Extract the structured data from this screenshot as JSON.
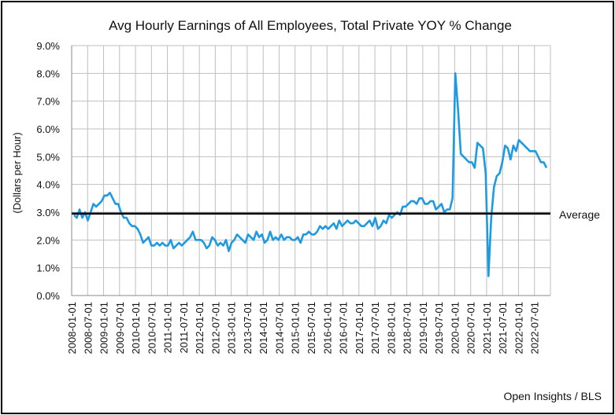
{
  "chart_data": {
    "type": "line",
    "title": "Avg Hourly Earnings of All Employees, Total Private YOY % Change",
    "xlabel": "",
    "ylabel": "(Dollars per Hour)",
    "ylim": [
      0,
      9
    ],
    "y_tick_labels": [
      "0.0%",
      "1.0%",
      "2.0%",
      "3.0%",
      "4.0%",
      "5.0%",
      "6.0%",
      "7.0%",
      "8.0%",
      "9.0%"
    ],
    "x_tick_labels": [
      "2008-01-01",
      "2008-07-01",
      "2009-01-01",
      "2009-07-01",
      "2010-01-01",
      "2010-07-01",
      "2011-01-01",
      "2011-07-01",
      "2012-01-01",
      "2012-07-01",
      "2013-01-01",
      "2013-07-01",
      "2014-01-01",
      "2014-07-01",
      "2015-01-01",
      "2015-07-01",
      "2016-01-01",
      "2016-07-01",
      "2017-01-01",
      "2017-07-01",
      "2018-01-01",
      "2018-07-01",
      "2019-01-01",
      "2019-07-01",
      "2020-01-01",
      "2020-07-01",
      "2021-01-01",
      "2021-07-01",
      "2022-01-01",
      "2022-07-01"
    ],
    "grid": true,
    "reference_line": {
      "label": "Average",
      "value": 2.95
    },
    "series": [
      {
        "color": "#1e9ae0",
        "x_start": "2008-01",
        "frequency": "monthly",
        "values": [
          2.9,
          2.8,
          3.1,
          2.8,
          3.0,
          2.7,
          3.0,
          3.3,
          3.2,
          3.3,
          3.4,
          3.6,
          3.6,
          3.7,
          3.5,
          3.3,
          3.3,
          3.0,
          2.8,
          2.8,
          2.6,
          2.5,
          2.5,
          2.4,
          2.2,
          1.9,
          2.0,
          2.1,
          1.8,
          1.8,
          1.9,
          1.8,
          1.9,
          1.8,
          1.8,
          2.0,
          1.7,
          1.8,
          1.9,
          1.8,
          1.9,
          2.0,
          2.1,
          2.3,
          2.0,
          2.0,
          2.0,
          1.9,
          1.7,
          1.8,
          2.1,
          2.0,
          1.8,
          1.9,
          1.8,
          2.0,
          1.6,
          1.9,
          2.0,
          2.2,
          2.1,
          2.0,
          1.9,
          2.2,
          2.1,
          2.0,
          2.3,
          2.1,
          2.2,
          1.9,
          2.0,
          2.3,
          2.0,
          2.1,
          2.0,
          2.2,
          2.0,
          2.1,
          2.1,
          2.0,
          2.0,
          2.1,
          1.9,
          2.2,
          2.2,
          2.3,
          2.2,
          2.2,
          2.3,
          2.5,
          2.4,
          2.5,
          2.4,
          2.5,
          2.6,
          2.4,
          2.7,
          2.5,
          2.6,
          2.7,
          2.6,
          2.6,
          2.7,
          2.6,
          2.5,
          2.5,
          2.6,
          2.7,
          2.5,
          2.8,
          2.4,
          2.5,
          2.7,
          2.6,
          2.9,
          2.8,
          2.9,
          3.0,
          2.9,
          3.2,
          3.2,
          3.3,
          3.4,
          3.4,
          3.3,
          3.5,
          3.5,
          3.3,
          3.3,
          3.4,
          3.4,
          3.1,
          3.2,
          3.3,
          3.0,
          3.1,
          3.1,
          3.5,
          8.0,
          6.7,
          5.1,
          5.0,
          4.9,
          4.8,
          4.8,
          4.6,
          5.5,
          5.4,
          5.3,
          4.4,
          0.7,
          2.8,
          3.9,
          4.3,
          4.4,
          4.8,
          5.4,
          5.3,
          4.9,
          5.4,
          5.2,
          5.6,
          5.5,
          5.4,
          5.3,
          5.2,
          5.2,
          5.2,
          5.0,
          4.8,
          4.8,
          4.6
        ]
      }
    ],
    "annotations": [
      "Open Insights / BLS"
    ]
  }
}
